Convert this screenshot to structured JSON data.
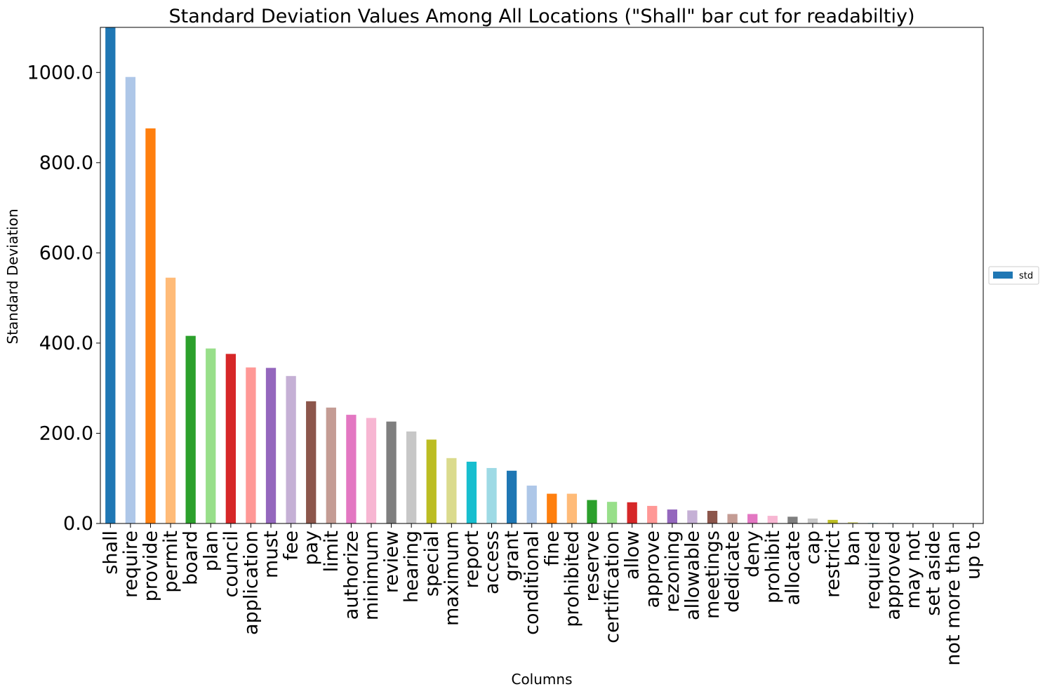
{
  "chart_data": {
    "type": "bar",
    "title": "Standard Deviation Values Among All Locations (\"Shall\" bar cut for readabiltiy)",
    "xlabel": "Columns",
    "ylabel": "Standard Deviation",
    "ylim": [
      0,
      1100
    ],
    "yticks": [
      "0.0",
      "200.0",
      "400.0",
      "600.0",
      "800.0",
      "1000.0"
    ],
    "legend": {
      "entries": [
        "std"
      ],
      "placement": "right-center"
    },
    "grid": false,
    "categories": [
      "shall",
      "require",
      "provide",
      "permit",
      "board",
      "plan",
      "council",
      "application",
      "must",
      "fee",
      "pay",
      "limit",
      "authorize",
      "minimum",
      "review",
      "hearing",
      "special",
      "maximum",
      "report",
      "access",
      "grant",
      "conditional",
      "fine",
      "prohibited",
      "reserve",
      "certification",
      "allow",
      "approve",
      "rezoning",
      "allowable",
      "meetings",
      "dedicate",
      "deny",
      "prohibit",
      "allocate",
      "cap",
      "restrict",
      "ban",
      "required",
      "approved",
      "may not",
      "set aside",
      "not more than",
      "up to"
    ],
    "values": [
      1100,
      990,
      876,
      545,
      416,
      388,
      376,
      346,
      345,
      327,
      271,
      257,
      241,
      234,
      226,
      204,
      186,
      145,
      137,
      123,
      117,
      84,
      66,
      66,
      52,
      48,
      47,
      39,
      31,
      29,
      28,
      21,
      21,
      17,
      15,
      11,
      8,
      3,
      1,
      1,
      0.5,
      0.5,
      0.5,
      0.3
    ],
    "colors": [
      "#1f77b4",
      "#aec7e8",
      "#ff7f0e",
      "#ffbb78",
      "#2ca02c",
      "#98df8a",
      "#d62728",
      "#ff9896",
      "#9467bd",
      "#c5b0d5",
      "#8c564b",
      "#c49c94",
      "#e377c2",
      "#f7b6d2",
      "#7f7f7f",
      "#c7c7c7",
      "#bcbd22",
      "#dbdb8d",
      "#17becf",
      "#9edae5"
    ],
    "legend_color": "#1f77b4"
  }
}
